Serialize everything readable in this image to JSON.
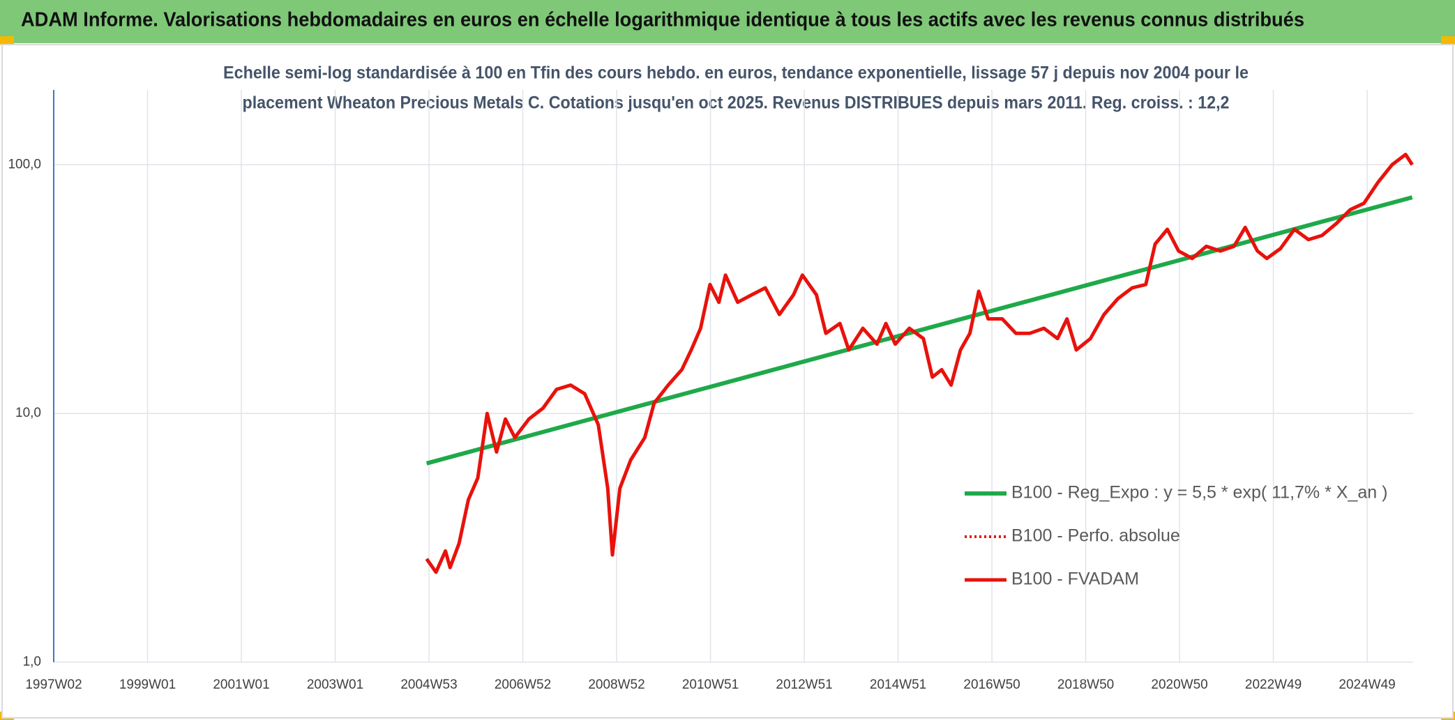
{
  "chart_data": {
    "type": "line",
    "title": "ADAM Informe. Valorisations hebdomadaires en euros en échelle logarithmique identique à tous les actifs avec les revenus connus distribués",
    "subtitle": [
      "Echelle semi-log standardisée à 100 en Tfin des cours hebdo. en euros, tendance exponentielle, lissage 57 j depuis nov 2004 pour le",
      "placement Wheaton Precious Metals C. Cotations jusqu'en oct 2025. Revenus DISTRIBUES depuis mars 2011. Reg. croiss. : 12,2"
    ],
    "ylog": true,
    "grid": true,
    "legend": "lower right",
    "xlim": [
      1997.02,
      2026.0
    ],
    "ylim": [
      1,
      200
    ],
    "yticks": [
      {
        "value": 1,
        "label": "1,0"
      },
      {
        "value": 10,
        "label": "10,0"
      },
      {
        "value": 100,
        "label": "100,0"
      }
    ],
    "xticks": [
      {
        "value": 1997.02,
        "label": "1997W02"
      },
      {
        "value": 1999.02,
        "label": "1999W01"
      },
      {
        "value": 2001.02,
        "label": "2001W01"
      },
      {
        "value": 2003.02,
        "label": "2003W01"
      },
      {
        "value": 2005.02,
        "label": "2004W53"
      },
      {
        "value": 2007.02,
        "label": "2006W52"
      },
      {
        "value": 2009.02,
        "label": "2008W52"
      },
      {
        "value": 2011.02,
        "label": "2010W51"
      },
      {
        "value": 2013.02,
        "label": "2012W51"
      },
      {
        "value": 2015.02,
        "label": "2014W51"
      },
      {
        "value": 2017.02,
        "label": "2016W50"
      },
      {
        "value": 2019.02,
        "label": "2018W50"
      },
      {
        "value": 2021.02,
        "label": "2020W50"
      },
      {
        "value": 2023.02,
        "label": "2022W49"
      },
      {
        "value": 2025.02,
        "label": "2024W49"
      }
    ],
    "series": [
      {
        "name": "B100 - Reg_Expo : y = 5,5 * exp( 11,7% *  X_an )",
        "color": "#1fa94a",
        "style": "solid",
        "width": 6,
        "x": [
          2004.97,
          2025.98
        ],
        "values": [
          6.3,
          74
        ]
      },
      {
        "name": "B100 - Perfo. absolue",
        "color": "#e8120c",
        "style": "dotted",
        "width": 4,
        "x": [
          2004.97,
          2005.17,
          2005.37,
          2005.47,
          2005.66,
          2005.86,
          2006.06,
          2006.26,
          2006.46,
          2006.65,
          2006.85,
          2007.15,
          2007.45,
          2007.74,
          2008.04,
          2008.34,
          2008.63,
          2008.83,
          2008.93,
          2009.09,
          2009.32,
          2009.62,
          2009.82,
          2010.12,
          2010.41,
          2010.61,
          2010.81,
          2011.01,
          2011.2,
          2011.34,
          2011.6,
          2011.9,
          2012.19,
          2012.49,
          2012.79,
          2012.98,
          2013.28,
          2013.48,
          2013.78,
          2013.97,
          2014.27,
          2014.57,
          2014.76,
          2014.96,
          2015.26,
          2015.56,
          2015.75,
          2015.95,
          2016.15,
          2016.35,
          2016.55,
          2016.74,
          2016.94,
          2017.24,
          2017.53,
          2017.83,
          2018.13,
          2018.42,
          2018.62,
          2018.82,
          2019.12,
          2019.41,
          2019.71,
          2020.01,
          2020.3,
          2020.5,
          2020.76,
          2021.0,
          2021.29,
          2021.59,
          2021.89,
          2022.18,
          2022.42,
          2022.68,
          2022.88,
          2023.17,
          2023.47,
          2023.77,
          2024.06,
          2024.36,
          2024.66,
          2024.95,
          2025.25,
          2025.55,
          2025.84,
          2025.98
        ],
        "values": [
          2.6,
          2.3,
          2.8,
          2.4,
          3.0,
          4.5,
          5.5,
          10.0,
          7.0,
          9.5,
          8.0,
          9.5,
          10.5,
          12.5,
          13.0,
          12.0,
          9.0,
          5.0,
          2.7,
          5.0,
          6.5,
          8.0,
          11.0,
          13.0,
          15.0,
          18.0,
          22.0,
          33.0,
          28.0,
          36.0,
          28.0,
          30.0,
          32.0,
          25.0,
          30.0,
          36.0,
          30.0,
          21.0,
          23.0,
          18.0,
          22.0,
          19.0,
          23.0,
          19.0,
          22.0,
          20.0,
          14.0,
          15.0,
          13.0,
          18.0,
          21.0,
          31.0,
          24.0,
          24.0,
          21.0,
          21.0,
          22.0,
          20.0,
          24.0,
          18.0,
          20.0,
          25.0,
          29.0,
          32.0,
          33.0,
          48.0,
          55.0,
          45.0,
          42.0,
          47.0,
          45.0,
          47.0,
          56.0,
          45.0,
          42.0,
          46.0,
          55.0,
          50.0,
          52.0,
          58.0,
          66.0,
          70.0,
          85.0,
          100.0,
          110.0,
          100.0
        ]
      },
      {
        "name": "B100 - FVADAM",
        "color": "#e8120c",
        "style": "solid",
        "width": 5,
        "x": [
          2004.97,
          2005.17,
          2005.37,
          2005.47,
          2005.66,
          2005.86,
          2006.06,
          2006.26,
          2006.46,
          2006.65,
          2006.85,
          2007.15,
          2007.45,
          2007.74,
          2008.04,
          2008.34,
          2008.63,
          2008.83,
          2008.93,
          2009.09,
          2009.32,
          2009.62,
          2009.82,
          2010.12,
          2010.41,
          2010.61,
          2010.81,
          2011.01,
          2011.2,
          2011.34,
          2011.6,
          2011.9,
          2012.19,
          2012.49,
          2012.79,
          2012.98,
          2013.28,
          2013.48,
          2013.78,
          2013.97,
          2014.27,
          2014.57,
          2014.76,
          2014.96,
          2015.26,
          2015.56,
          2015.75,
          2015.95,
          2016.15,
          2016.35,
          2016.55,
          2016.74,
          2016.94,
          2017.24,
          2017.53,
          2017.83,
          2018.13,
          2018.42,
          2018.62,
          2018.82,
          2019.12,
          2019.41,
          2019.71,
          2020.01,
          2020.3,
          2020.5,
          2020.76,
          2021.0,
          2021.29,
          2021.59,
          2021.89,
          2022.18,
          2022.42,
          2022.68,
          2022.88,
          2023.17,
          2023.47,
          2023.77,
          2024.06,
          2024.36,
          2024.66,
          2024.95,
          2025.25,
          2025.55,
          2025.84,
          2025.98
        ],
        "values": [
          2.6,
          2.3,
          2.8,
          2.4,
          3.0,
          4.5,
          5.5,
          10.0,
          7.0,
          9.5,
          8.0,
          9.5,
          10.5,
          12.5,
          13.0,
          12.0,
          9.0,
          5.0,
          2.7,
          5.0,
          6.5,
          8.0,
          11.0,
          13.0,
          15.0,
          18.0,
          22.0,
          33.0,
          28.0,
          36.0,
          28.0,
          30.0,
          32.0,
          25.0,
          30.0,
          36.0,
          30.0,
          21.0,
          23.0,
          18.0,
          22.0,
          19.0,
          23.0,
          19.0,
          22.0,
          20.0,
          14.0,
          15.0,
          13.0,
          18.0,
          21.0,
          31.0,
          24.0,
          24.0,
          21.0,
          21.0,
          22.0,
          20.0,
          24.0,
          18.0,
          20.0,
          25.0,
          29.0,
          32.0,
          33.0,
          48.0,
          55.0,
          45.0,
          42.0,
          47.0,
          45.0,
          47.0,
          56.0,
          45.0,
          42.0,
          46.0,
          55.0,
          50.0,
          52.0,
          58.0,
          66.0,
          70.0,
          85.0,
          100.0,
          110.0,
          100.0
        ]
      }
    ]
  }
}
